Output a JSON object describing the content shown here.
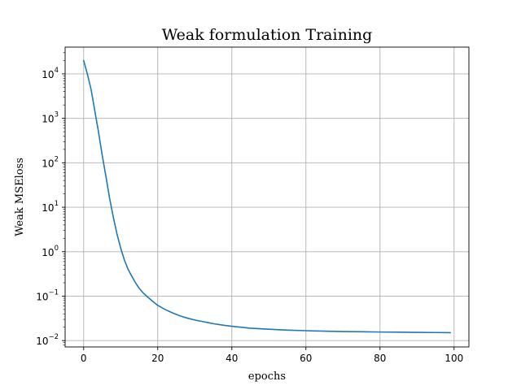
{
  "chart_data": {
    "type": "line",
    "title": "Weak formulation Training",
    "xlabel": "epochs",
    "ylabel": "Weak MSEloss",
    "xlim": [
      -5,
      104
    ],
    "ylim": [
      0.0072,
      40000
    ],
    "yscale": "log",
    "grid": true,
    "xticks": [
      0,
      20,
      40,
      60,
      80,
      100
    ],
    "xtick_labels": [
      "0",
      "20",
      "40",
      "60",
      "80",
      "100"
    ],
    "yticks": [
      0.01,
      0.1,
      1,
      10,
      100,
      1000,
      10000
    ],
    "ytick_labels": [
      {
        "base": "10",
        "exp": "−2"
      },
      {
        "base": "10",
        "exp": "−1"
      },
      {
        "base": "10",
        "exp": "0"
      },
      {
        "base": "10",
        "exp": "1"
      },
      {
        "base": "10",
        "exp": "2"
      },
      {
        "base": "10",
        "exp": "3"
      },
      {
        "base": "10",
        "exp": "4"
      }
    ],
    "series": [
      {
        "color": "#1f77b4",
        "x": [
          0,
          1,
          2,
          3,
          4,
          5,
          6,
          7,
          8,
          9,
          10,
          11,
          12,
          13,
          14,
          15,
          16,
          17,
          18,
          19,
          20,
          22,
          24,
          26,
          28,
          30,
          32,
          35,
          38,
          40,
          45,
          50,
          55,
          60,
          65,
          70,
          75,
          80,
          85,
          90,
          95,
          99
        ],
        "y": [
          20000,
          10000,
          4500,
          1500,
          500,
          150,
          50,
          16,
          6,
          2.5,
          1.2,
          0.65,
          0.4,
          0.28,
          0.2,
          0.15,
          0.12,
          0.1,
          0.085,
          0.072,
          0.062,
          0.05,
          0.042,
          0.036,
          0.032,
          0.029,
          0.027,
          0.024,
          0.022,
          0.021,
          0.019,
          0.018,
          0.0172,
          0.0167,
          0.0163,
          0.016,
          0.0158,
          0.0156,
          0.0155,
          0.0153,
          0.0152,
          0.0151
        ]
      }
    ]
  }
}
